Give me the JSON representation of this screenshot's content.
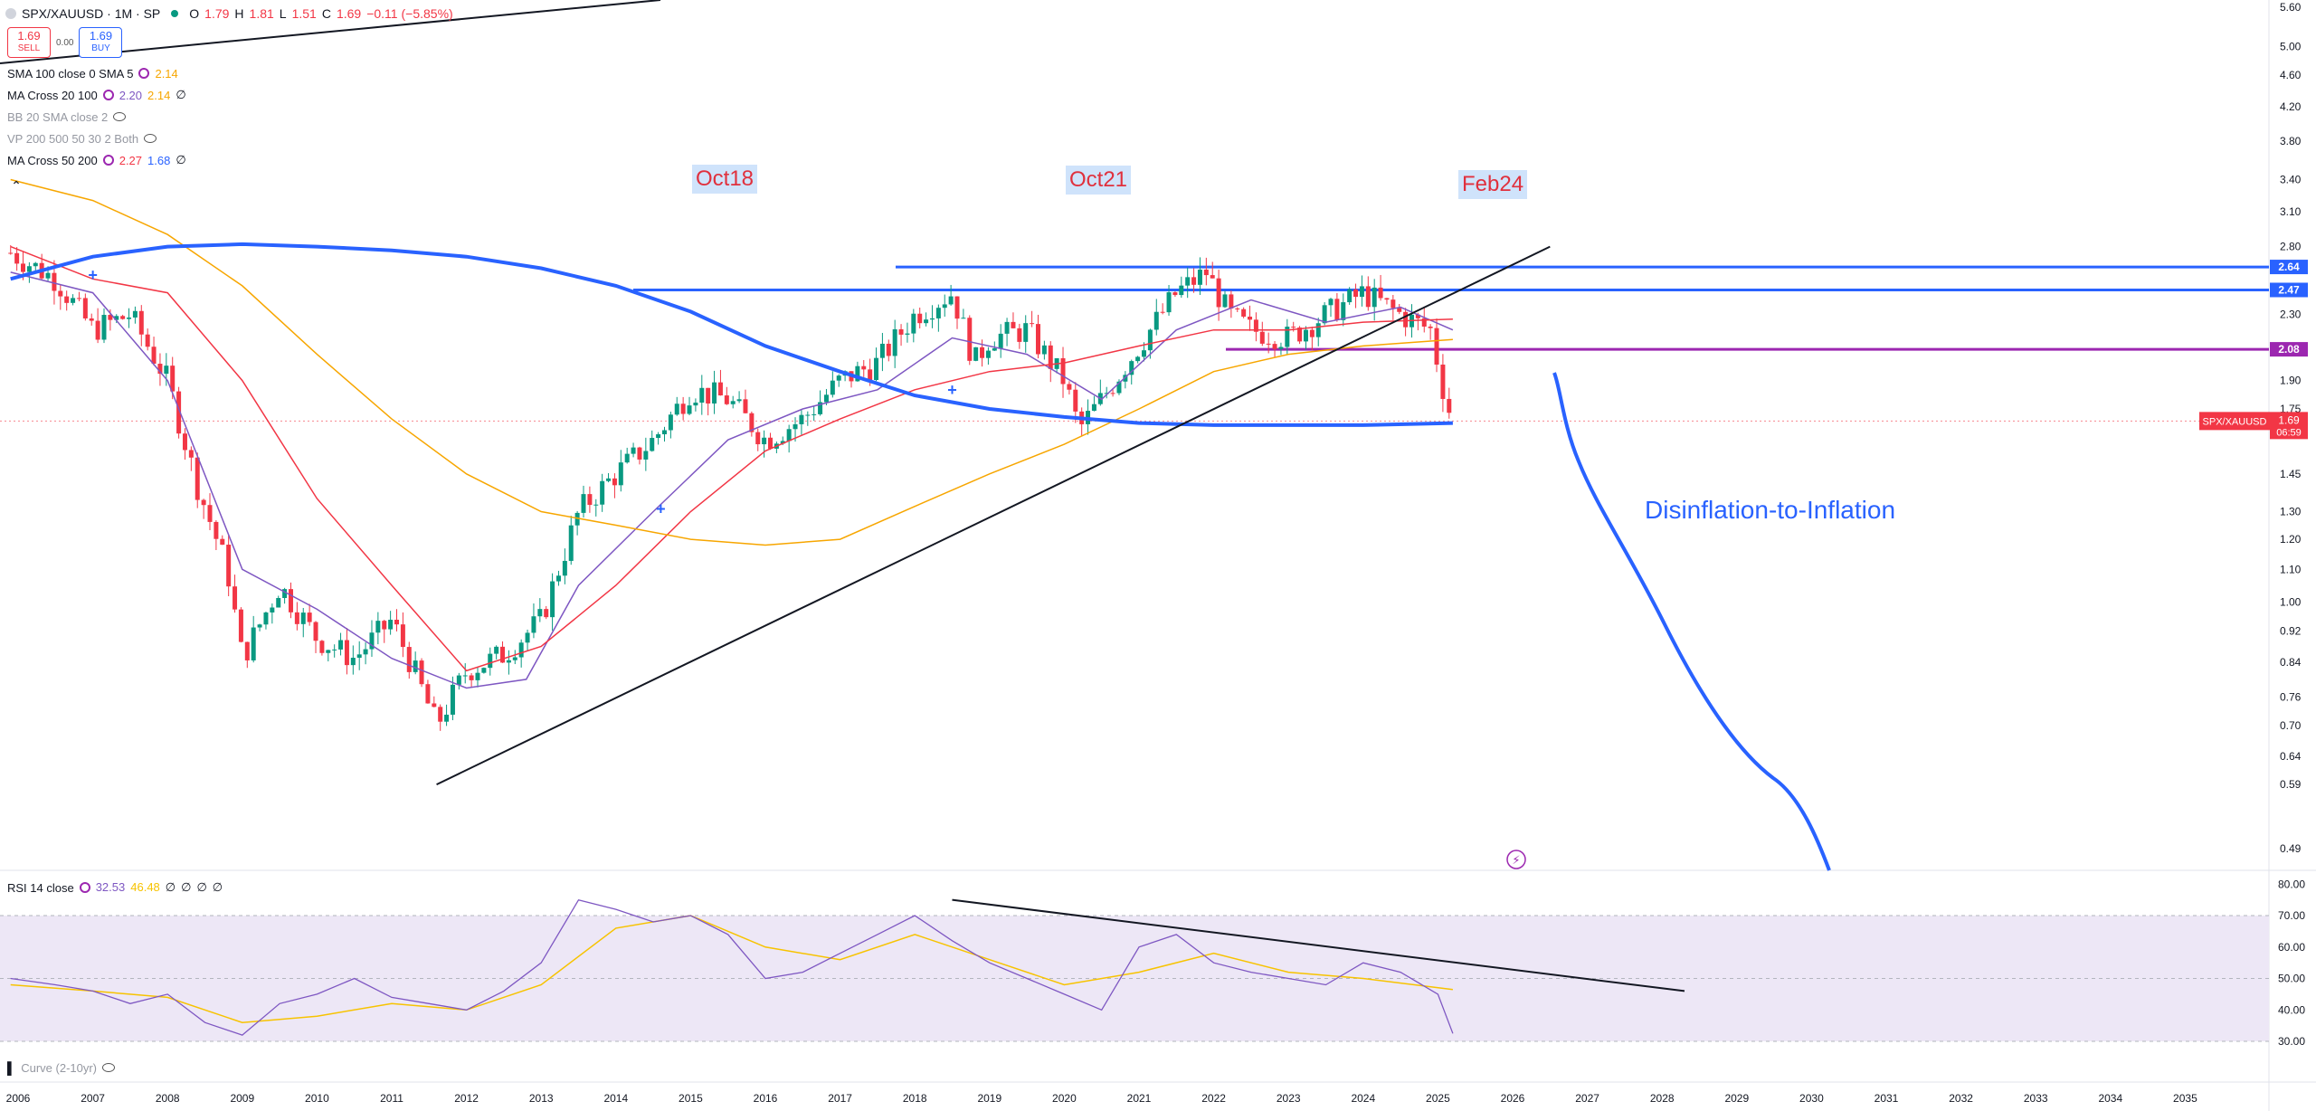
{
  "header": {
    "symbol": "SPX/XAUUSD · 1M · SP",
    "ohlc": {
      "o_label": "O",
      "o": "1.79",
      "h_label": "H",
      "h": "1.81",
      "l_label": "L",
      "l": "1.51",
      "c_label": "C",
      "c": "1.69",
      "change": "−0.11 (−5.85%)"
    },
    "sell": {
      "price": "1.69",
      "label": "SELL"
    },
    "spread": "0.00",
    "buy": {
      "price": "1.69",
      "label": "BUY"
    }
  },
  "indicators": [
    {
      "name": "SMA 100 close 0 SMA 5",
      "values": [
        "2.14"
      ],
      "value_colors": [
        "#f7a600"
      ]
    },
    {
      "name": "MA Cross 20 100",
      "values": [
        "2.20",
        "2.14",
        "∅"
      ],
      "value_colors": [
        "#7e57c2",
        "#f7a600",
        "#131722"
      ]
    },
    {
      "name": "BB 20 SMA close 2",
      "values": [],
      "value_colors": []
    },
    {
      "name": "VP 200 500 50 30 2 Both",
      "values": [],
      "value_colors": []
    },
    {
      "name": "MA Cross 50 200",
      "values": [
        "2.27",
        "1.68",
        "∅"
      ],
      "value_colors": [
        "#f23645",
        "#2962ff",
        "#131722"
      ]
    }
  ],
  "annotations": {
    "a1": "Oct18",
    "a2": "Oct21",
    "a3": "Feb24",
    "arrow_text": "Disinflation-to-Inflation"
  },
  "price_axis": {
    "ticks": [
      "5.60",
      "5.00",
      "4.60",
      "4.20",
      "3.80",
      "3.40",
      "3.10",
      "2.80",
      "2.30",
      "1.90",
      "1.75",
      "1.45",
      "1.30",
      "1.20",
      "1.10",
      "1.00",
      "0.92",
      "0.84",
      "0.76",
      "0.70",
      "0.64",
      "0.59",
      "0.49"
    ],
    "levels": [
      {
        "label": "2.64",
        "color": "#2962ff"
      },
      {
        "label": "2.47",
        "color": "#2962ff"
      },
      {
        "label": "2.08",
        "color": "#9c27b0"
      }
    ],
    "last_symbol": "SPX/XAUUSD",
    "last_price": "1.69",
    "countdown": "06:59"
  },
  "rsi": {
    "label": "RSI 14 close",
    "values": [
      "32.53",
      "46.48",
      "∅",
      "∅",
      "∅",
      "∅"
    ],
    "value_colors": [
      "#7e57c2",
      "#f7c300",
      "#131722",
      "#131722",
      "#131722",
      "#131722"
    ],
    "ticks": [
      "80.00",
      "70.00",
      "60.00",
      "50.00",
      "40.00",
      "30.00"
    ]
  },
  "bottom_label": "Curve (2-10yr)",
  "time_axis": [
    "2006",
    "2007",
    "2008",
    "2009",
    "2010",
    "2011",
    "2012",
    "2013",
    "2014",
    "2015",
    "2016",
    "2017",
    "2018",
    "2019",
    "2020",
    "2021",
    "2022",
    "2023",
    "2024",
    "2025",
    "2026",
    "2027",
    "2028",
    "2029",
    "2030",
    "2031",
    "2032",
    "2033",
    "2034",
    "2035"
  ],
  "colors": {
    "up": "#089981",
    "down": "#f23645",
    "ma20": "#7e57c2",
    "ma50": "#f23645",
    "ma100": "#f7a600",
    "ma200": "#2962ff",
    "level": "#2962ff",
    "level2": "#9c27b0",
    "rsi": "#7e57c2",
    "rsi_ma": "#f7c300",
    "rsi_band": "#ede7f6"
  },
  "chart_data": {
    "type": "candlestick",
    "x_unit": "year",
    "ylim": [
      0.49,
      5.6
    ],
    "scale": "log",
    "series": [
      {
        "name": "SPX/XAUUSD",
        "x": [
          2005.9,
          2006.5,
          2007.0,
          2007.5,
          2008.0,
          2008.4,
          2008.8,
          2009.0,
          2009.5,
          2010.0,
          2010.5,
          2011.0,
          2011.3,
          2011.6,
          2012.0,
          2012.5,
          2013.0,
          2013.5,
          2014.0,
          2014.5,
          2015.0,
          2015.5,
          2016.0,
          2016.5,
          2017.0,
          2017.5,
          2018.0,
          2018.5,
          2018.8,
          2019.0,
          2019.5,
          2020.0,
          2020.2,
          2020.5,
          2021.0,
          2021.5,
          2021.9,
          2022.2,
          2022.5,
          2023.0,
          2023.5,
          2024.0,
          2024.5,
          2024.9,
          2025.1,
          2025.2
        ],
        "y": [
          2.75,
          2.55,
          2.2,
          2.3,
          1.9,
          1.4,
          1.1,
          0.85,
          1.05,
          0.9,
          0.85,
          0.95,
          0.82,
          0.7,
          0.82,
          0.86,
          0.95,
          1.3,
          1.45,
          1.6,
          1.85,
          1.8,
          1.6,
          1.7,
          1.9,
          2.0,
          2.3,
          2.45,
          2.0,
          2.15,
          2.2,
          1.9,
          1.65,
          1.8,
          2.1,
          2.45,
          2.6,
          2.3,
          2.2,
          2.15,
          2.3,
          2.45,
          2.3,
          2.2,
          1.8,
          1.69
        ]
      },
      {
        "name": "MA Cross 20",
        "x": [
          2005.9,
          2007.0,
          2008.0,
          2009.0,
          2010.0,
          2011.0,
          2012.0,
          2012.8,
          2013.5,
          2014.5,
          2015.5,
          2016.5,
          2017.5,
          2018.5,
          2019.5,
          2020.5,
          2021.5,
          2022.5,
          2023.5,
          2024.5,
          2025.2
        ],
        "y": [
          2.6,
          2.45,
          1.9,
          1.1,
          0.98,
          0.85,
          0.78,
          0.8,
          1.05,
          1.3,
          1.6,
          1.75,
          1.85,
          2.15,
          2.05,
          1.8,
          2.2,
          2.4,
          2.25,
          2.35,
          2.2
        ]
      },
      {
        "name": "MA Cross 50",
        "x": [
          2005.9,
          2007.0,
          2008.0,
          2009.0,
          2010.0,
          2011.0,
          2012.0,
          2013.0,
          2014.0,
          2015.0,
          2016.0,
          2017.0,
          2018.0,
          2019.0,
          2020.0,
          2021.0,
          2022.0,
          2023.0,
          2024.0,
          2025.2
        ],
        "y": [
          2.8,
          2.55,
          2.45,
          1.9,
          1.35,
          1.05,
          0.82,
          0.88,
          1.05,
          1.3,
          1.55,
          1.7,
          1.85,
          1.95,
          2.0,
          2.1,
          2.2,
          2.2,
          2.25,
          2.27
        ]
      },
      {
        "name": "MA Cross 100",
        "x": [
          2005.9,
          2007.0,
          2008.0,
          2009.0,
          2010.0,
          2011.0,
          2012.0,
          2013.0,
          2014.0,
          2015.0,
          2016.0,
          2017.0,
          2018.0,
          2019.0,
          2020.0,
          2021.0,
          2022.0,
          2023.0,
          2024.0,
          2025.2
        ],
        "y": [
          3.4,
          3.2,
          2.9,
          2.5,
          2.05,
          1.7,
          1.45,
          1.3,
          1.25,
          1.2,
          1.18,
          1.2,
          1.32,
          1.45,
          1.58,
          1.75,
          1.95,
          2.05,
          2.1,
          2.14
        ]
      },
      {
        "name": "MA Cross 200",
        "x": [
          2005.9,
          2007.0,
          2008.0,
          2009.0,
          2010.0,
          2011.0,
          2012.0,
          2013.0,
          2014.0,
          2015.0,
          2016.0,
          2017.0,
          2018.0,
          2019.0,
          2020.0,
          2021.0,
          2022.0,
          2023.0,
          2024.0,
          2025.2
        ],
        "y": [
          2.55,
          2.72,
          2.8,
          2.82,
          2.8,
          2.77,
          2.72,
          2.63,
          2.5,
          2.32,
          2.1,
          1.95,
          1.82,
          1.75,
          1.71,
          1.68,
          1.67,
          1.67,
          1.67,
          1.68
        ]
      }
    ],
    "rsi": {
      "x": [
        2005.9,
        2006.5,
        2007.0,
        2007.5,
        2008.0,
        2008.5,
        2009.0,
        2009.5,
        2010.0,
        2010.5,
        2011.0,
        2011.5,
        2012.0,
        2012.5,
        2013.0,
        2013.5,
        2014.0,
        2014.5,
        2015.0,
        2015.5,
        2016.0,
        2016.5,
        2017.0,
        2017.5,
        2018.0,
        2018.5,
        2019.0,
        2019.5,
        2020.0,
        2020.5,
        2021.0,
        2021.5,
        2022.0,
        2022.5,
        2023.0,
        2023.5,
        2024.0,
        2024.5,
        2025.0,
        2025.2
      ],
      "y": [
        50,
        48,
        46,
        42,
        45,
        36,
        32,
        42,
        45,
        50,
        44,
        42,
        40,
        46,
        55,
        75,
        72,
        68,
        70,
        64,
        50,
        52,
        58,
        64,
        70,
        62,
        55,
        50,
        45,
        40,
        60,
        64,
        55,
        52,
        50,
        48,
        55,
        52,
        45,
        32.5
      ]
    },
    "rsi_ma": {
      "x": [
        2005.9,
        2007.0,
        2008.0,
        2009.0,
        2010.0,
        2011.0,
        2012.0,
        2013.0,
        2014.0,
        2015.0,
        2016.0,
        2017.0,
        2018.0,
        2019.0,
        2020.0,
        2021.0,
        2022.0,
        2023.0,
        2024.0,
        2025.2
      ],
      "y": [
        48,
        46,
        44,
        36,
        38,
        42,
        40,
        48,
        66,
        70,
        60,
        56,
        64,
        56,
        48,
        52,
        58,
        52,
        50,
        46.5
      ]
    }
  }
}
